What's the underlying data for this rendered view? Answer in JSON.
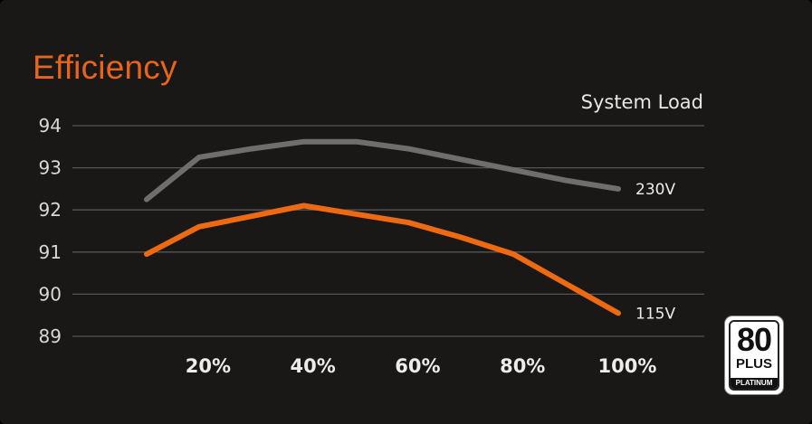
{
  "title": "Efficiency",
  "x_axis_caption": "System Load",
  "badge": {
    "number": "80",
    "plus": "PLUS",
    "tier": "PLATINUM"
  },
  "colors": {
    "accent": "#e8641c",
    "series_230": "#6e6e6e",
    "series_115": "#ee6a12",
    "grid": "#555555",
    "background": "#1a1817"
  },
  "chart_data": {
    "type": "line",
    "title": "Efficiency",
    "xlabel": "System Load",
    "ylabel": "",
    "xlim": [
      10,
      100
    ],
    "ylim": [
      89,
      94
    ],
    "yticks": [
      89,
      90,
      91,
      92,
      93,
      94
    ],
    "x_ticks": [
      {
        "value": 20,
        "label": "20%"
      },
      {
        "value": 40,
        "label": "40%"
      },
      {
        "value": 60,
        "label": "60%"
      },
      {
        "value": 80,
        "label": "80%"
      },
      {
        "value": 100,
        "label": "100%"
      }
    ],
    "grid": true,
    "series": [
      {
        "name": "230V",
        "color": "#6e6e6e",
        "x": [
          10,
          20,
          30,
          40,
          50,
          60,
          70,
          80,
          90,
          100
        ],
        "y": [
          92.25,
          93.25,
          93.45,
          93.62,
          93.62,
          93.45,
          93.2,
          92.95,
          92.7,
          92.5
        ]
      },
      {
        "name": "115V",
        "color": "#ee6a12",
        "x": [
          10,
          20,
          30,
          40,
          50,
          60,
          70,
          80,
          90,
          100
        ],
        "y": [
          90.95,
          91.6,
          91.85,
          92.1,
          91.9,
          91.7,
          91.35,
          90.95,
          90.25,
          89.55
        ]
      }
    ]
  }
}
